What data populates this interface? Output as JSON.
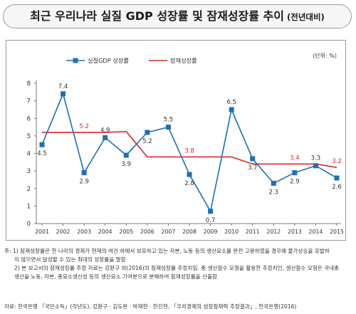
{
  "header": {
    "title": "최근 우리나라 실질 GDP 성장률 및 잠재성장률 추이",
    "subtitle": "(전년대비)"
  },
  "chart_data": {
    "type": "line",
    "unit_label": "(단위: %)",
    "x": [
      "2001",
      "2002",
      "2003",
      "2004",
      "2005",
      "2006",
      "2007",
      "2008",
      "2009",
      "2010",
      "2011",
      "2012",
      "2013",
      "2014",
      "2015"
    ],
    "ylim": [
      0,
      8
    ],
    "yticks": [
      0,
      1,
      2,
      3,
      4,
      5,
      6,
      7,
      8
    ],
    "grid": false,
    "legend_position": "top-left",
    "series": [
      {
        "name": "실질GDP 성장률",
        "color": "#1f6fb2",
        "marker": "square",
        "values": [
          4.5,
          7.4,
          2.9,
          4.9,
          3.9,
          5.2,
          5.5,
          2.8,
          0.7,
          6.5,
          3.7,
          2.3,
          2.9,
          3.3,
          2.6
        ],
        "labels": [
          "4.5",
          "7.4",
          "2.9",
          "4.9",
          "3.9",
          "5.2",
          "5.5",
          "2.8",
          "0.7",
          "6.5",
          "3.7",
          "2.3",
          "2.9",
          "3.3",
          "2.6"
        ]
      },
      {
        "name": "잠재성장률",
        "color": "#d9292b",
        "marker": "none",
        "values": [
          5.2,
          5.2,
          5.2,
          5.2,
          5.25,
          3.8,
          3.8,
          3.8,
          3.8,
          3.8,
          3.4,
          3.4,
          3.4,
          3.4,
          3.2
        ],
        "annotations": [
          {
            "x": "2003",
            "text": "5.2"
          },
          {
            "x": "2008",
            "text": "3.8"
          },
          {
            "x": "2013",
            "text": "3.4"
          },
          {
            "x": "2015",
            "text": "3.2"
          }
        ]
      }
    ]
  },
  "notes": [
    "주: 1) 잠재성장률은 한 나라의 경제가 현재의 여건 하에서 보유하고 있는 자본, 노동 등의 생산요소를 완전 고용하였을 경우에 물가상승을 유발하",
    "지 않으면서 달성할 수 있는 최대의 성장률을 말함",
    "2) 본 보고서의 잠재성장률 추정 자료는 강환구 외(2016)의 잠재성장률 추정치임. 총 생산함수 모형을 활용한 추정치인, 생산함수 모형은 국내총",
    "생산을 노동, 자본, 총요소생산성 등의 생산요소 기여분으로 분해하여 잠재성장률을 산출함"
  ],
  "source": "자료: 한국은행 「국민소득」(각년도), 강환구 · 김도완 · 박재현 · 한진현, 「우리경제의 성장잠재력 추정결과」, 한국은행(2016)"
}
